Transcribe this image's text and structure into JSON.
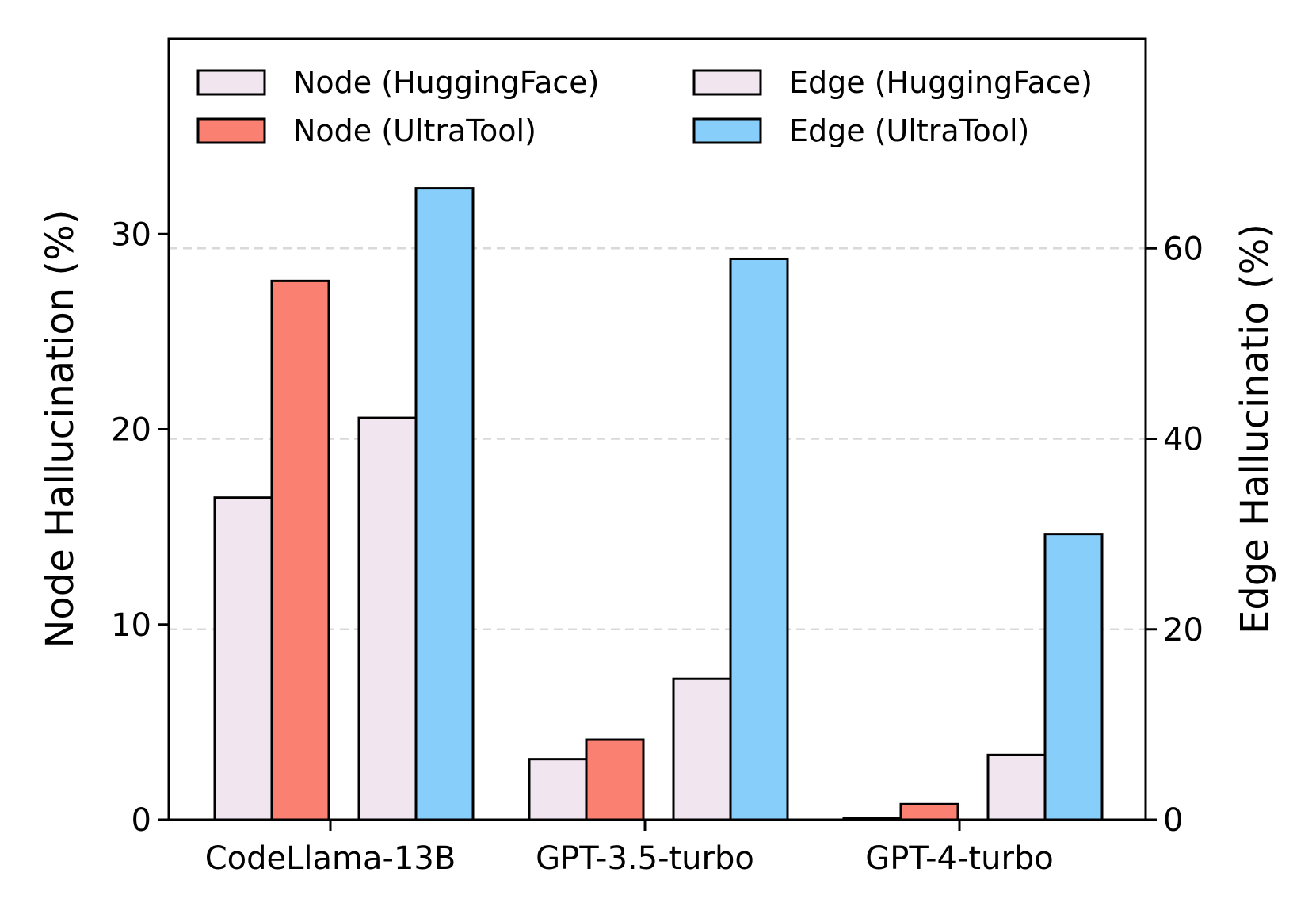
{
  "chart_data": {
    "type": "bar",
    "categories": [
      "CodeLlama-13B",
      "GPT-3.5-turbo",
      "GPT-4-turbo"
    ],
    "ylabel_left": "Node Hallucination (%)",
    "ylabel_right": "Edge Hallucinatio (%)",
    "ylim_left": [
      0,
      40
    ],
    "ylim_right": [
      0,
      82
    ],
    "yticks_left": [
      0,
      10,
      20,
      30
    ],
    "yticks_right": [
      0,
      20,
      40,
      60
    ],
    "grid": "dashed horizontal at right-axis ticks",
    "legend_position": "top",
    "series": [
      {
        "name": "Node (HuggingFace)",
        "axis": "left",
        "color": "#f1e6f0",
        "values": [
          16.5,
          3.1,
          0.1
        ]
      },
      {
        "name": "Node (UltraTool)",
        "axis": "left",
        "color": "#fa8072",
        "values": [
          27.6,
          4.1,
          0.8
        ]
      },
      {
        "name": "Edge (HuggingFace)",
        "axis": "right",
        "color": "#f1e6f0",
        "values": [
          42.2,
          14.8,
          6.8
        ]
      },
      {
        "name": "Edge (UltraTool)",
        "axis": "right",
        "color": "#87cefa",
        "values": [
          66.3,
          58.9,
          30.0
        ]
      }
    ]
  }
}
